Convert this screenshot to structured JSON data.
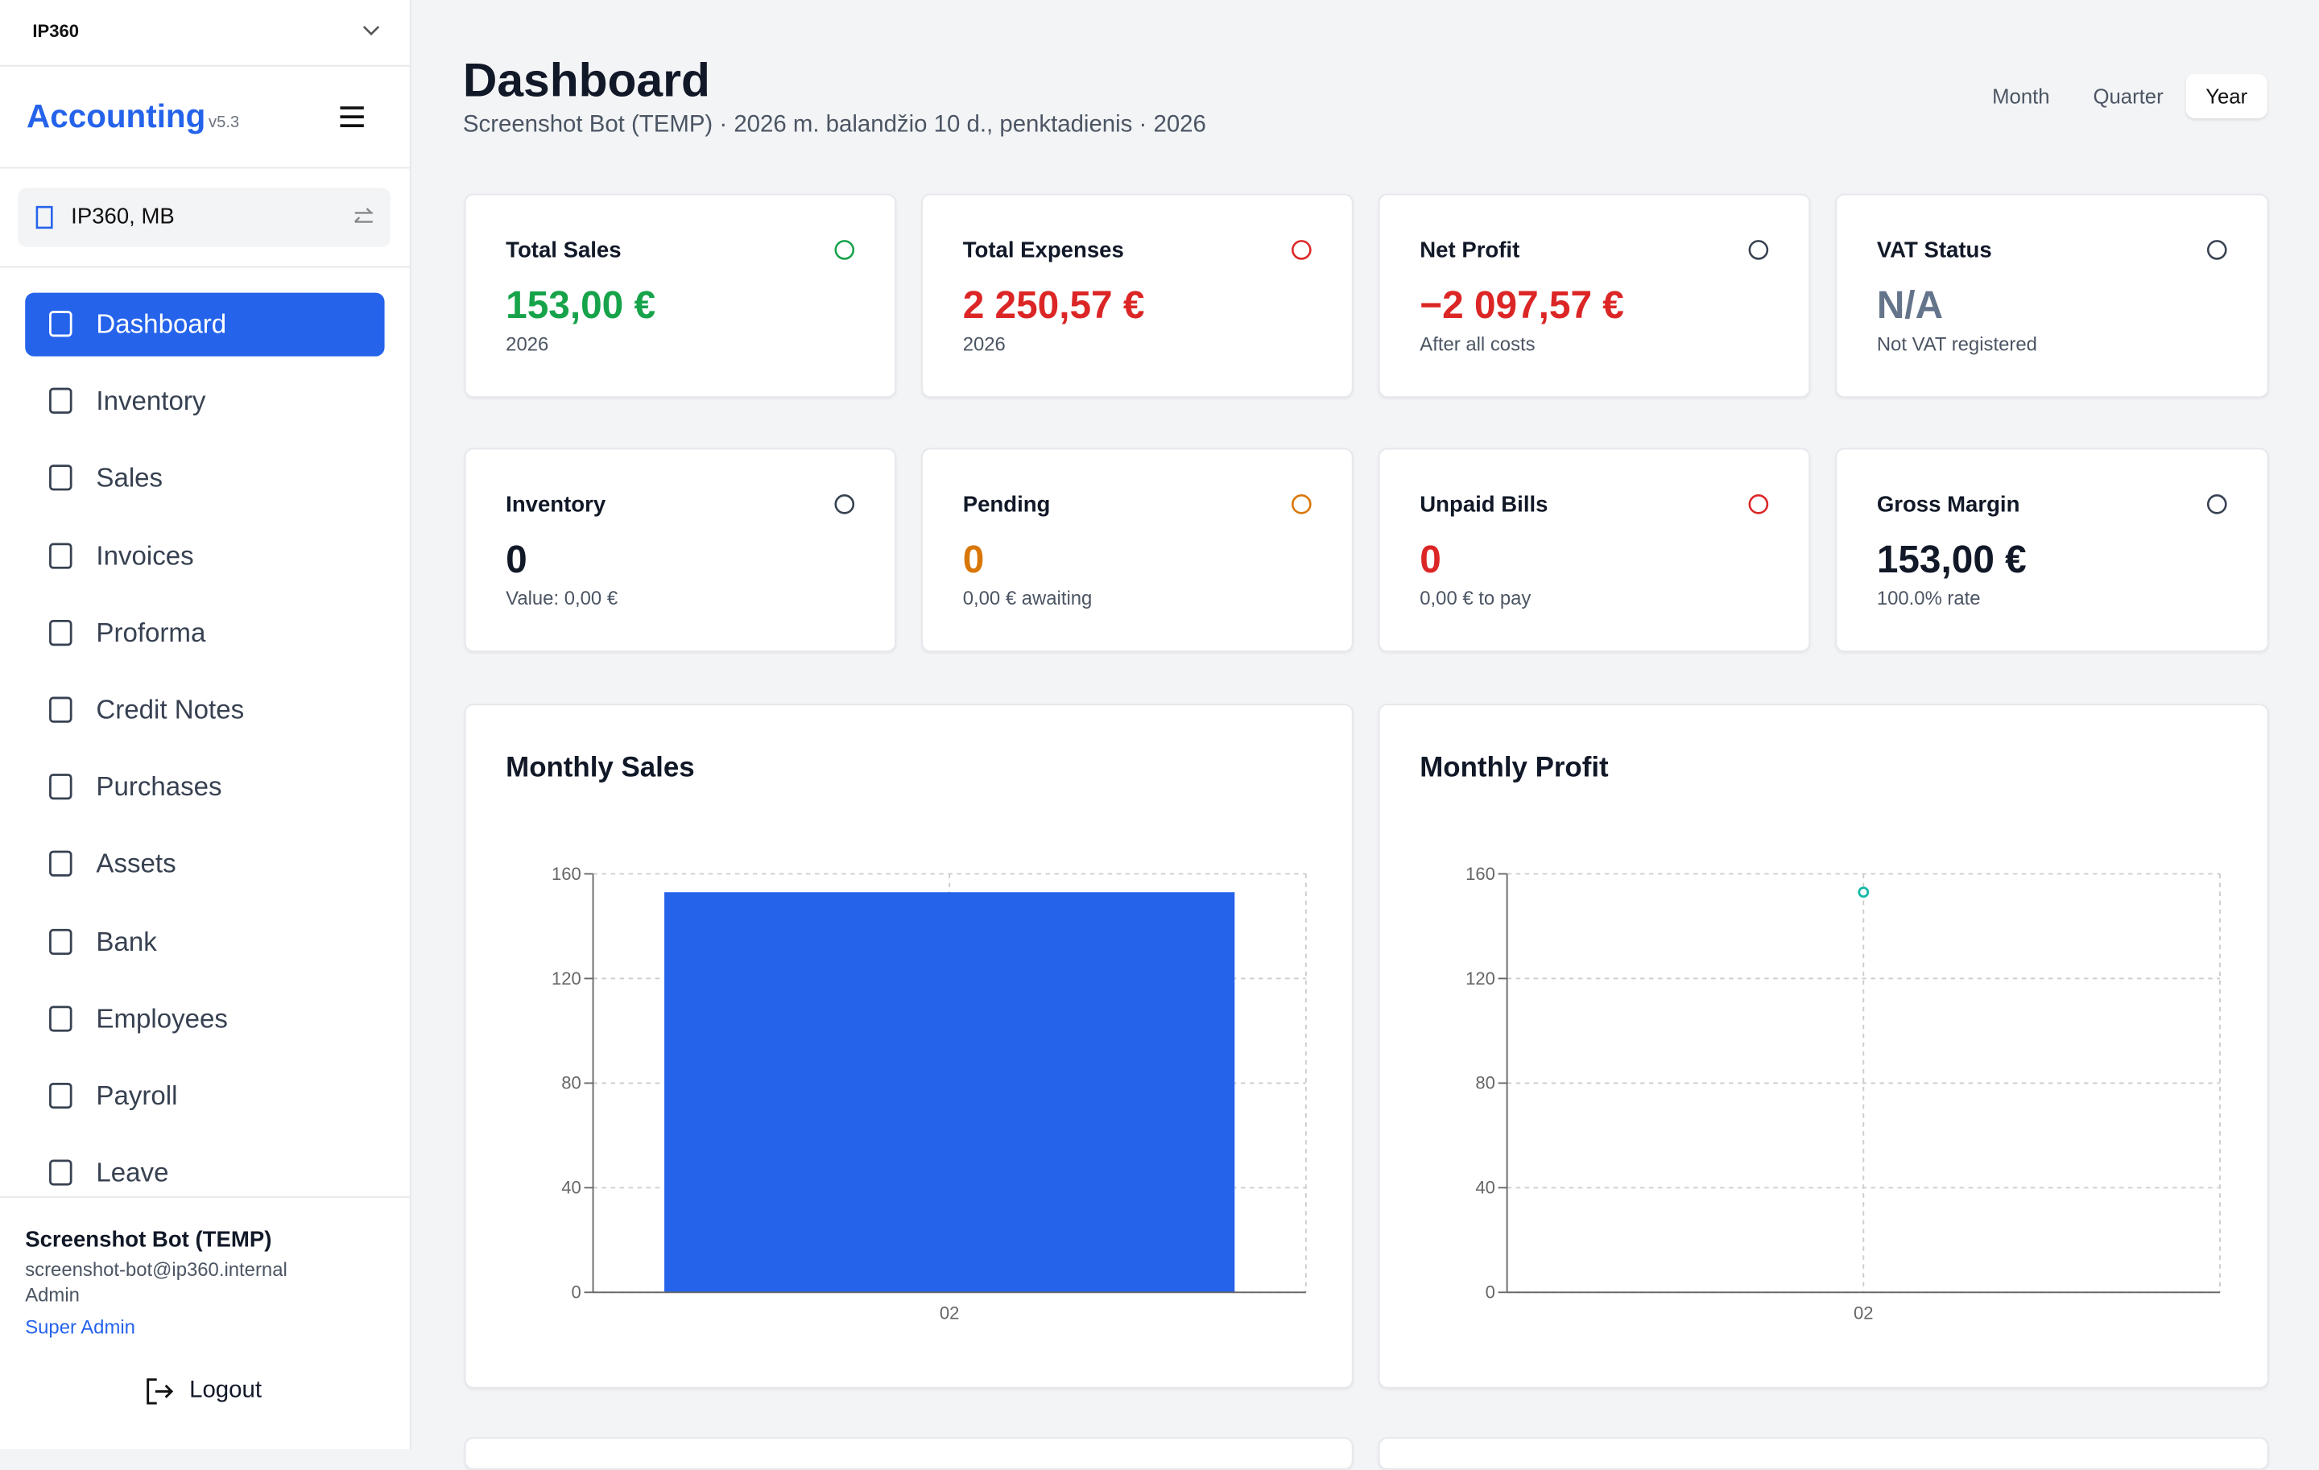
{
  "sidebar": {
    "brand": "IP360",
    "app": "Accounting",
    "version": "v5.3",
    "company": "IP360, MB",
    "nav": [
      "Dashboard",
      "Inventory",
      "Sales",
      "Invoices",
      "Proforma",
      "Credit Notes",
      "Purchases",
      "Assets",
      "Bank",
      "Employees",
      "Payroll",
      "Leave"
    ],
    "user": {
      "name": "Screenshot Bot (TEMP)",
      "email": "screenshot-bot@ip360.internal",
      "role": "Admin",
      "level": "Super Admin"
    },
    "logout": "Logout"
  },
  "header": {
    "title": "Dashboard",
    "subtitle": "Screenshot Bot (TEMP) · 2026 m. balandžio 10 d., penktadienis · 2026",
    "periods": [
      "Month",
      "Quarter",
      "Year"
    ]
  },
  "cards": [
    {
      "title": "Total Sales",
      "value": "153,00 €",
      "note": "2026"
    },
    {
      "title": "Total Expenses",
      "value": "2 250,57 €",
      "note": "2026"
    },
    {
      "title": "Net Profit",
      "value": "−2 097,57 €",
      "note": "After all costs"
    },
    {
      "title": "VAT Status",
      "value": "N/A",
      "note": "Not VAT registered"
    },
    {
      "title": "Inventory",
      "value": "0",
      "note": "Value: 0,00 €"
    },
    {
      "title": "Pending",
      "value": "0",
      "note": "0,00 € awaiting"
    },
    {
      "title": "Unpaid Bills",
      "value": "0",
      "note": "0,00 € to pay"
    },
    {
      "title": "Gross Margin",
      "value": "153,00 €",
      "note": "100.0% rate"
    }
  ],
  "chart_data": [
    {
      "type": "bar",
      "title": "Monthly Sales",
      "categories": [
        "02"
      ],
      "values": [
        153
      ],
      "color": "#2563eb",
      "ylim": [
        0,
        160
      ],
      "yticks": [
        0,
        40,
        80,
        120,
        160
      ],
      "grid": true
    },
    {
      "type": "line",
      "title": "Monthly Profit",
      "categories": [
        "02"
      ],
      "values": [
        153
      ],
      "color": "#14b8a6",
      "ylim": [
        0,
        160
      ],
      "yticks": [
        0,
        40,
        80,
        120,
        160
      ],
      "grid": true
    }
  ]
}
